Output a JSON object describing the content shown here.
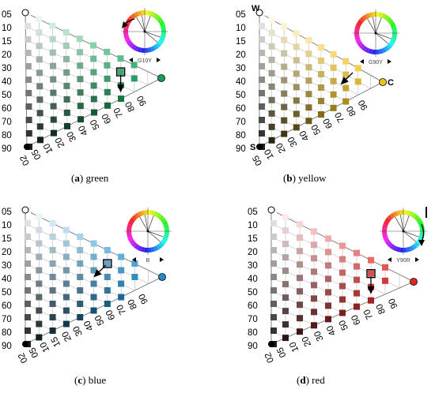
{
  "panels": [
    {
      "id": "a",
      "caption_letter": "a",
      "caption_word": "green",
      "hue_code": "G10Y",
      "color": "#14a05a",
      "apex_labels": {
        "w": "",
        "s": "",
        "c": ""
      },
      "left_ticks": [
        "05",
        "10",
        "15",
        "20",
        "30",
        "40",
        "50",
        "60",
        "70",
        "80",
        "90"
      ],
      "bottom_ticks": [
        "02",
        "05",
        "10",
        "20",
        "30",
        "40",
        "50",
        "60",
        "70",
        "80",
        "90"
      ],
      "arrow": "down",
      "highlight": [
        7,
        1
      ]
    },
    {
      "id": "b",
      "caption_letter": "b",
      "caption_word": "yellow",
      "hue_code": "G90Y",
      "color": "#f0c01e",
      "apex_labels": {
        "w": "W",
        "s": "S",
        "c": "C"
      },
      "left_ticks": [
        "05",
        "10",
        "15",
        "20",
        "30",
        "40",
        "50",
        "60",
        "70",
        "80",
        "90"
      ],
      "bottom_ticks": [
        "05",
        "10",
        "20",
        "30",
        "40",
        "50",
        "60",
        "70",
        "80",
        "90"
      ],
      "arrow": "down-left",
      "highlight": null
    },
    {
      "id": "c",
      "caption_letter": "c",
      "caption_word": "blue",
      "hue_code": "B",
      "color": "#1e8ccc",
      "apex_labels": {
        "w": "",
        "s": "",
        "c": ""
      },
      "left_ticks": [
        "05",
        "10",
        "15",
        "20",
        "30",
        "40",
        "50",
        "60",
        "70",
        "80",
        "90"
      ],
      "bottom_ticks": [
        "02",
        "05",
        "10",
        "15",
        "20",
        "30",
        "40",
        "50",
        "60",
        "70",
        "80",
        "90"
      ],
      "arrow": "down-left",
      "highlight": [
        6,
        1
      ]
    },
    {
      "id": "d",
      "caption_letter": "d",
      "caption_word": "red",
      "hue_code": "Y90R",
      "color": "#e02828",
      "apex_labels": {
        "w": "",
        "s": "",
        "c": ""
      },
      "left_ticks": [
        "05",
        "10",
        "15",
        "20",
        "30",
        "40",
        "50",
        "60",
        "70",
        "80",
        "90"
      ],
      "bottom_ticks": [
        "02",
        "05",
        "10",
        "20",
        "30",
        "40",
        "50",
        "60",
        "70",
        "80",
        "90"
      ],
      "arrow": "down",
      "highlight": [
        7,
        1
      ]
    }
  ]
}
